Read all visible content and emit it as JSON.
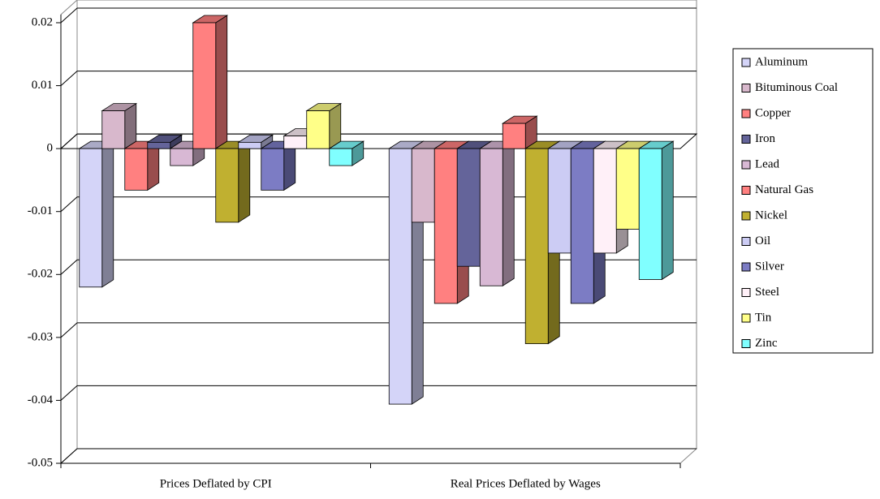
{
  "chart_data": {
    "type": "bar3d",
    "categories": [
      "Prices Deflated by CPI",
      "Real Prices Deflated by Wages"
    ],
    "series": [
      {
        "name": "Aluminum",
        "color": "#d4d4f8",
        "values": [
          -0.022,
          -0.0406
        ]
      },
      {
        "name": "Bituminous Coal",
        "color": "#d8b8cc",
        "values": [
          0.006,
          -0.0117
        ]
      },
      {
        "name": "Copper",
        "color": "#ff8080",
        "values": [
          -0.0066,
          -0.0246
        ]
      },
      {
        "name": "Iron",
        "color": "#64649a",
        "values": [
          0.001,
          -0.0187
        ]
      },
      {
        "name": "Lead",
        "color": "#d8b8d4",
        "values": [
          -0.0027,
          -0.0218
        ]
      },
      {
        "name": "Natural Gas",
        "color": "#ff8080",
        "values": [
          0.02,
          0.004
        ]
      },
      {
        "name": "Nickel",
        "color": "#c0b030",
        "values": [
          -0.0117,
          -0.031
        ]
      },
      {
        "name": "Oil",
        "color": "#ccccf4",
        "values": [
          0.001,
          -0.0166
        ]
      },
      {
        "name": "Silver",
        "color": "#7c7cc4",
        "values": [
          -0.0066,
          -0.0246
        ]
      },
      {
        "name": "Steel",
        "color": "#fff0f8",
        "values": [
          0.002,
          -0.0166
        ]
      },
      {
        "name": "Tin",
        "color": "#ffff88",
        "values": [
          0.006,
          -0.0128
        ]
      },
      {
        "name": "Zinc",
        "color": "#80ffff",
        "values": [
          -0.0027,
          -0.0208
        ]
      }
    ],
    "ylim": [
      -0.05,
      0.02
    ],
    "yticks": [
      -0.05,
      -0.04,
      -0.03,
      -0.02,
      -0.01,
      0,
      0.01,
      0.02
    ],
    "grid": true,
    "legend": "right"
  }
}
